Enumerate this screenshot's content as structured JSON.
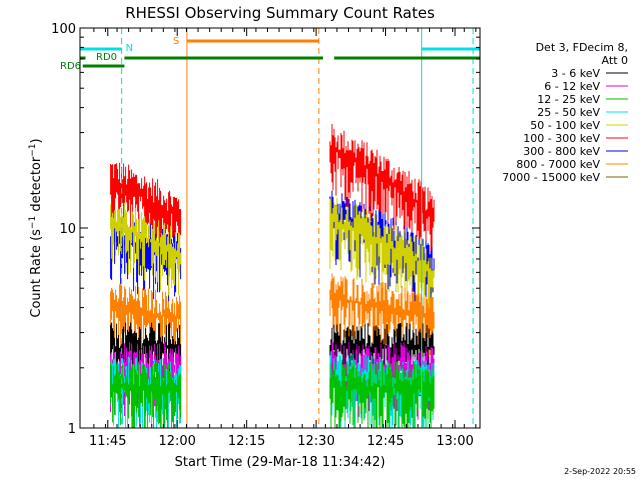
{
  "chart_data": {
    "type": "line",
    "title": "RHESSI Observing Summary Count Rates",
    "xlabel": "Start Time (29-Mar-18 11:34:42)",
    "ylabel_main": "Count Rate (s",
    "ylabel_sup": "−1",
    "ylabel_mid": " detector",
    "ylabel_sup2": "−1",
    "ylabel_end": ")",
    "y_scale": "log",
    "ylim": [
      1,
      100
    ],
    "xlim_minutes": [
      11.65,
      13.09
    ],
    "x_ticks": [
      {
        "label": "11:45",
        "hour": 11.75
      },
      {
        "label": "12:00",
        "hour": 12.0
      },
      {
        "label": "12:15",
        "hour": 12.25
      },
      {
        "label": "12:30",
        "hour": 12.5
      },
      {
        "label": "12:45",
        "hour": 12.75
      },
      {
        "label": "13:00",
        "hour": 13.0
      }
    ],
    "y_ticks": [
      {
        "label": "1",
        "value": 1
      },
      {
        "label": "10",
        "value": 10
      },
      {
        "label": "100",
        "value": 100
      }
    ],
    "legend": {
      "placement": "right",
      "header": [
        "Det 3, FDecim 8,",
        "Att 0"
      ],
      "entries": [
        {
          "label": "3 - 6 keV",
          "color": "#000000"
        },
        {
          "label": "6 - 12 keV",
          "color": "#e000e0"
        },
        {
          "label": "12 - 25 keV",
          "color": "#00c000"
        },
        {
          "label": "25 - 50 keV",
          "color": "#00e0e0"
        },
        {
          "label": "50 - 100 keV",
          "color": "#d0d000"
        },
        {
          "label": "100 - 300 keV",
          "color": "#ff0000"
        },
        {
          "label": "300 - 800 keV",
          "color": "#0000ff"
        },
        {
          "label": "800 - 7000 keV",
          "color": "#ff8000"
        },
        {
          "label": "7000 - 15000 keV",
          "color": "#806000"
        }
      ]
    },
    "segments": [
      {
        "start": 11.76,
        "end": 12.015
      },
      {
        "start": 12.55,
        "end": 12.925
      }
    ],
    "series": [
      {
        "band": "100 - 300 keV",
        "color": "#ff0000",
        "levels": [
          [
            11.76,
            17
          ],
          [
            12.015,
            11
          ],
          [
            12.55,
            25
          ],
          [
            12.925,
            11
          ]
        ]
      },
      {
        "band": "300 - 800 keV",
        "color": "#0000ff",
        "levels": [
          [
            11.76,
            9
          ],
          [
            12.015,
            7
          ],
          [
            12.55,
            12
          ],
          [
            12.925,
            6
          ]
        ]
      },
      {
        "band": "50 - 100 keV",
        "color": "#d0d000",
        "levels": [
          [
            11.76,
            11
          ],
          [
            12.015,
            7
          ],
          [
            12.55,
            11
          ],
          [
            12.925,
            6
          ]
        ]
      },
      {
        "band": "800 - 7000 keV",
        "color": "#ff8000",
        "levels": [
          [
            11.76,
            4
          ],
          [
            12.015,
            3.5
          ],
          [
            12.55,
            4.5
          ],
          [
            12.925,
            3.5
          ]
        ]
      },
      {
        "band": "3 - 6 keV",
        "color": "#000000",
        "levels": [
          [
            11.76,
            2.5
          ],
          [
            12.015,
            2.5
          ],
          [
            12.55,
            2.5
          ],
          [
            12.925,
            2.5
          ]
        ]
      },
      {
        "band": "6 - 12 keV",
        "color": "#e000e0",
        "levels": [
          [
            11.76,
            2
          ],
          [
            12.015,
            2
          ],
          [
            12.55,
            2
          ],
          [
            12.925,
            2
          ]
        ]
      },
      {
        "band": "25 - 50 keV",
        "color": "#00e0e0",
        "levels": [
          [
            11.76,
            1.8
          ],
          [
            12.015,
            1.6
          ],
          [
            12.55,
            1.8
          ],
          [
            12.925,
            1.6
          ]
        ]
      },
      {
        "band": "12 - 25 keV",
        "color": "#00c000",
        "levels": [
          [
            11.76,
            1.6
          ],
          [
            12.015,
            1.6
          ],
          [
            12.55,
            1.6
          ],
          [
            12.925,
            1.6
          ]
        ]
      }
    ],
    "flags": {
      "night": {
        "label": "N",
        "color": "#00e0e0",
        "bars": [
          [
            11.65,
            11.8
          ],
          [
            12.88,
            13.09
          ]
        ],
        "marks_dashed": [
          11.8,
          13.065
        ],
        "marks_solid": [
          11.65,
          12.88
        ]
      },
      "saa": {
        "label": "S",
        "color": "#ff8000",
        "bars": [
          [
            12.035,
            12.51
          ]
        ],
        "marks_solid": [
          12.035
        ],
        "marks_dashed": [
          12.51
        ]
      },
      "rd0": {
        "label": "RD0",
        "color": "#008000",
        "bars": [
          [
            11.65,
            11.67
          ],
          [
            11.81,
            12.525
          ],
          [
            12.565,
            13.09
          ]
        ]
      },
      "rd6": {
        "label": "RD6",
        "color": "#008000",
        "bars": [
          [
            11.66,
            11.81
          ]
        ]
      }
    },
    "footer_date": "2-Sep-2022 20:55"
  }
}
